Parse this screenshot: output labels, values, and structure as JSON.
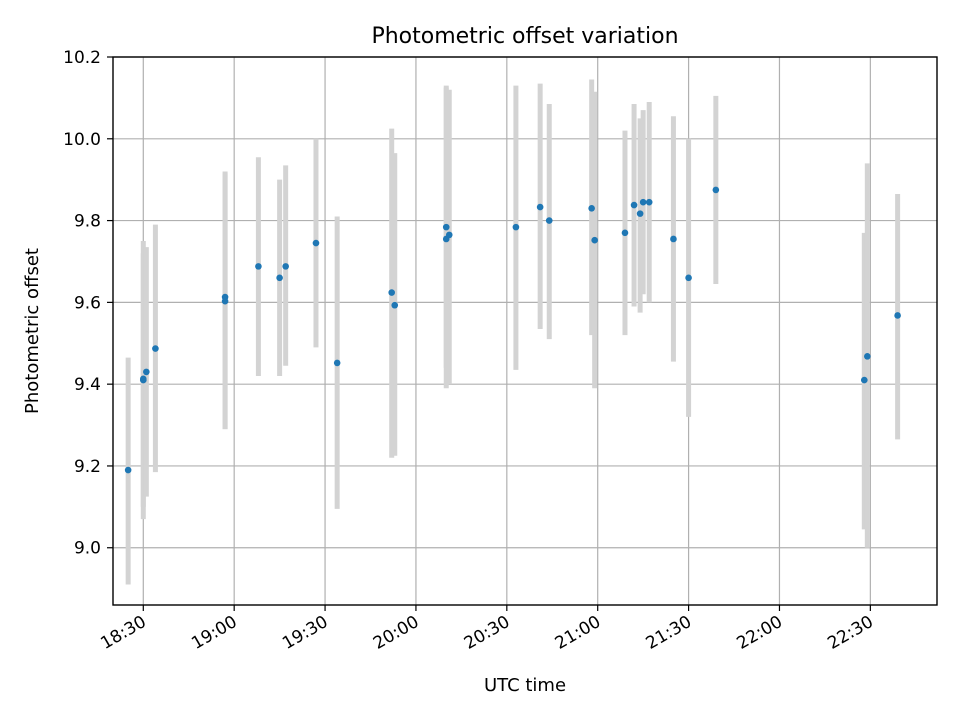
{
  "chart_data": {
    "type": "scatter",
    "title": "Photometric offset variation",
    "xlabel": "UTC time",
    "ylabel": "Photometric offset",
    "xlim": [
      "18:20",
      "22:52"
    ],
    "ylim": [
      8.86,
      10.2
    ],
    "x_ticks": [
      "18:30",
      "19:00",
      "19:30",
      "20:00",
      "20:30",
      "21:00",
      "21:30",
      "22:00",
      "22:30"
    ],
    "y_ticks": [
      "9.0",
      "9.2",
      "9.4",
      "9.6",
      "9.8",
      "10.0",
      "10.2"
    ],
    "grid": true,
    "colors": {
      "points": "#1f77b4",
      "error_bars": "#d3d3d3"
    },
    "points": [
      {
        "x": "18:25",
        "y": 9.19,
        "ylow": 8.91,
        "yhigh": 9.465
      },
      {
        "x": "18:30",
        "y": 9.41,
        "ylow": 9.07,
        "yhigh": 9.75
      },
      {
        "x": "18:30",
        "y": 9.413,
        "ylow": 9.1,
        "yhigh": 9.72
      },
      {
        "x": "18:31",
        "y": 9.43,
        "ylow": 9.125,
        "yhigh": 9.735
      },
      {
        "x": "18:34",
        "y": 9.487,
        "ylow": 9.185,
        "yhigh": 9.79
      },
      {
        "x": "18:57",
        "y": 9.613,
        "ylow": 9.29,
        "yhigh": 9.92
      },
      {
        "x": "18:57",
        "y": 9.603,
        "ylow": 9.29,
        "yhigh": 9.915
      },
      {
        "x": "19:08",
        "y": 9.688,
        "ylow": 9.42,
        "yhigh": 9.955
      },
      {
        "x": "19:15",
        "y": 9.66,
        "ylow": 9.42,
        "yhigh": 9.9
      },
      {
        "x": "19:17",
        "y": 9.688,
        "ylow": 9.445,
        "yhigh": 9.935
      },
      {
        "x": "19:27",
        "y": 9.745,
        "ylow": 9.49,
        "yhigh": 10.0
      },
      {
        "x": "19:34",
        "y": 9.452,
        "ylow": 9.095,
        "yhigh": 9.81
      },
      {
        "x": "19:52",
        "y": 9.624,
        "ylow": 9.22,
        "yhigh": 10.025
      },
      {
        "x": "19:53",
        "y": 9.593,
        "ylow": 9.225,
        "yhigh": 9.965
      },
      {
        "x": "20:10",
        "y": 9.784,
        "ylow": 9.44,
        "yhigh": 10.13
      },
      {
        "x": "20:10",
        "y": 9.755,
        "ylow": 9.39,
        "yhigh": 10.125
      },
      {
        "x": "20:11",
        "y": 9.765,
        "ylow": 9.4,
        "yhigh": 10.12
      },
      {
        "x": "20:33",
        "y": 9.784,
        "ylow": 9.435,
        "yhigh": 10.13
      },
      {
        "x": "20:41",
        "y": 9.833,
        "ylow": 9.535,
        "yhigh": 10.135
      },
      {
        "x": "20:44",
        "y": 9.8,
        "ylow": 9.51,
        "yhigh": 10.085
      },
      {
        "x": "20:58",
        "y": 9.83,
        "ylow": 9.52,
        "yhigh": 10.145
      },
      {
        "x": "20:59",
        "y": 9.752,
        "ylow": 9.39,
        "yhigh": 10.115
      },
      {
        "x": "21:09",
        "y": 9.77,
        "ylow": 9.52,
        "yhigh": 10.02
      },
      {
        "x": "21:12",
        "y": 9.838,
        "ylow": 9.59,
        "yhigh": 10.085
      },
      {
        "x": "21:14",
        "y": 9.817,
        "ylow": 9.575,
        "yhigh": 10.05
      },
      {
        "x": "21:15",
        "y": 9.845,
        "ylow": 9.62,
        "yhigh": 10.07
      },
      {
        "x": "21:17",
        "y": 9.845,
        "ylow": 9.6,
        "yhigh": 10.09
      },
      {
        "x": "21:25",
        "y": 9.755,
        "ylow": 9.455,
        "yhigh": 10.055
      },
      {
        "x": "21:30",
        "y": 9.66,
        "ylow": 9.32,
        "yhigh": 10.0
      },
      {
        "x": "21:39",
        "y": 9.875,
        "ylow": 9.645,
        "yhigh": 10.105
      },
      {
        "x": "22:28",
        "y": 9.41,
        "ylow": 9.045,
        "yhigh": 9.77
      },
      {
        "x": "22:29",
        "y": 9.468,
        "ylow": 9.0,
        "yhigh": 9.94
      },
      {
        "x": "22:39",
        "y": 9.568,
        "ylow": 9.265,
        "yhigh": 9.865
      }
    ]
  }
}
